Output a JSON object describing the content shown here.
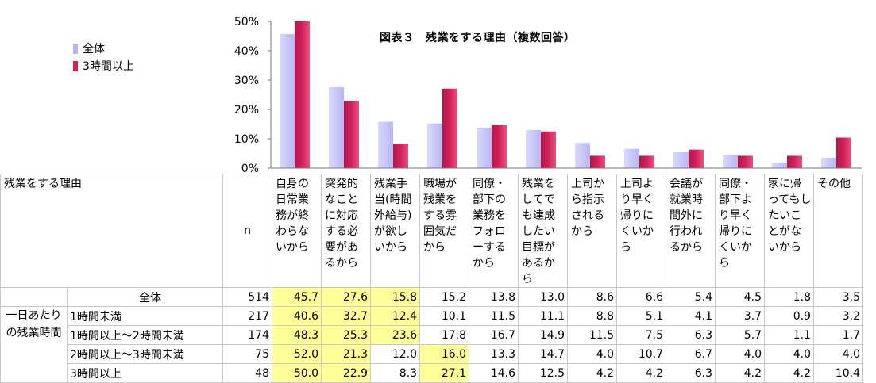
{
  "chart_data": {
    "type": "bar",
    "title": "図表３　残業をする理由（複数回答）",
    "categories": [
      "自身の日常業務が終わらないから",
      "突発的なことに対応する必要があるから",
      "残業手当(時間外給与)が欲しいから",
      "職場が残業をする雰囲気だから",
      "同僚・部下の業務をフォローするから",
      "残業をしてでも達成したい目標があるから",
      "上司から指示されるから",
      "上司より早く帰りにくいから",
      "会議が就業時間外に行われるから",
      "同僚・部下より早く帰りにくいから",
      "家に帰ってもしたいことがないから",
      "その他"
    ],
    "series": [
      {
        "name": "全体",
        "color": "#b7b7f5",
        "values": [
          45.7,
          27.6,
          15.8,
          15.2,
          13.8,
          13.0,
          8.6,
          6.6,
          5.4,
          4.5,
          1.8,
          3.5
        ]
      },
      {
        "name": "3時間以上",
        "color": "#d2215c",
        "values": [
          50.0,
          22.9,
          8.3,
          27.1,
          14.6,
          12.5,
          4.2,
          4.2,
          6.3,
          4.2,
          4.2,
          10.4
        ]
      }
    ],
    "yticks": [
      "0%",
      "10%",
      "20%",
      "30%",
      "40%",
      "50%"
    ],
    "ylim": [
      0,
      50
    ],
    "legend_position": "top-left"
  },
  "table": {
    "corner_label": "残業をする理由",
    "n_label": "n",
    "headers": [
      "自身の日常業務が終わらないから",
      "突発的なことに対応する必要があるから",
      "残業手当(時間外給与)が欲しいから",
      "職場が残業をする雰囲気だから",
      "同僚・部下の業務をフォローするから",
      "残業をしてでも達成したい目標があるから",
      "上司から指示されるから",
      "上司より早く帰りにくいから",
      "会議が就業時間外に行われるから",
      "同僚・部下より早く帰りにくいから",
      "家に帰ってもしたいことがないから",
      "その他"
    ],
    "group_label": "一日あたりの残業時間",
    "rows": [
      {
        "label": "全体",
        "n": "514",
        "values": [
          "45.7",
          "27.6",
          "15.8",
          "15.2",
          "13.8",
          "13.0",
          "8.6",
          "6.6",
          "5.4",
          "4.5",
          "1.8",
          "3.5"
        ]
      },
      {
        "label": "1時間未満",
        "n": "217",
        "values": [
          "40.6",
          "32.7",
          "12.4",
          "10.1",
          "11.5",
          "11.1",
          "8.8",
          "5.1",
          "4.1",
          "3.7",
          "0.9",
          "3.2"
        ]
      },
      {
        "label": "1時間以上～2時間未満",
        "n": "174",
        "values": [
          "48.3",
          "25.3",
          "23.6",
          "17.8",
          "16.7",
          "14.9",
          "11.5",
          "7.5",
          "6.3",
          "5.7",
          "1.1",
          "1.7"
        ]
      },
      {
        "label": "2時間以上～3時間未満",
        "n": "75",
        "values": [
          "52.0",
          "21.3",
          "12.0",
          "16.0",
          "13.3",
          "14.7",
          "4.0",
          "10.7",
          "6.7",
          "4.0",
          "4.0",
          "4.0"
        ]
      },
      {
        "label": "3時間以上",
        "n": "48",
        "values": [
          "50.0",
          "22.9",
          "8.3",
          "27.1",
          "14.6",
          "12.5",
          "4.2",
          "4.2",
          "6.3",
          "4.2",
          "4.2",
          "10.4"
        ]
      }
    ],
    "highlight_color": "#ffff99",
    "highlighted": [
      [
        0,
        1,
        2
      ],
      [
        0,
        1,
        2
      ],
      [
        0,
        1,
        2
      ],
      [
        0,
        1,
        3
      ],
      [
        0,
        1,
        3
      ]
    ]
  }
}
